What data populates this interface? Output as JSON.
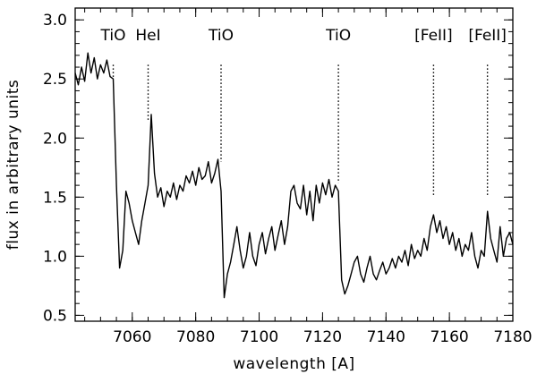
{
  "chart_data": {
    "type": "line",
    "title": "",
    "xlabel": "wavelength [A]",
    "ylabel": "flux in arbitrary units",
    "xlim": [
      7042,
      7180
    ],
    "ylim": [
      0.45,
      3.1
    ],
    "xticks": [
      7060,
      7080,
      7100,
      7120,
      7140,
      7160,
      7180
    ],
    "xtick_labels": [
      "7060",
      "7080",
      "7100",
      "7120",
      "7140",
      "7160",
      "7180"
    ],
    "xminor_step": 5,
    "yticks": [
      0.5,
      1.0,
      1.5,
      2.0,
      2.5,
      3.0
    ],
    "ytick_labels": [
      "0.5",
      "1.0",
      "1.5",
      "2.0",
      "2.5",
      "3.0"
    ],
    "yminor_step": 0.1,
    "grid": false,
    "line_color": "#000000",
    "annotations": [
      {
        "label": "TiO",
        "x": 7054,
        "y_top": 2.62,
        "y_bottom": 2.5
      },
      {
        "label": "HeI",
        "x": 7065,
        "y_top": 2.62,
        "y_bottom": 2.15
      },
      {
        "label": "TiO",
        "x": 7088,
        "y_top": 2.62,
        "y_bottom": 1.8
      },
      {
        "label": "TiO",
        "x": 7125,
        "y_top": 2.62,
        "y_bottom": 1.62
      },
      {
        "label": "[FeII]",
        "x": 7155,
        "y_top": 2.62,
        "y_bottom": 1.5
      },
      {
        "label": "[FeII]",
        "x": 7172,
        "y_top": 2.62,
        "y_bottom": 1.5
      }
    ],
    "series": [
      {
        "x": [
          7042,
          7043,
          7044,
          7045,
          7046,
          7047,
          7048,
          7049,
          7050,
          7051,
          7052,
          7053,
          7054,
          7055,
          7056,
          7057,
          7058,
          7059,
          7060,
          7061,
          7062,
          7063,
          7064,
          7065,
          7066,
          7067,
          7068,
          7069,
          7070,
          7071,
          7072,
          7073,
          7074,
          7075,
          7076,
          7077,
          7078,
          7079,
          7080,
          7081,
          7082,
          7083,
          7084,
          7085,
          7086,
          7087,
          7088,
          7089,
          7090,
          7091,
          7092,
          7093,
          7094,
          7095,
          7096,
          7097,
          7098,
          7099,
          7100,
          7101,
          7102,
          7103,
          7104,
          7105,
          7106,
          7107,
          7108,
          7109,
          7110,
          7111,
          7112,
          7113,
          7114,
          7115,
          7116,
          7117,
          7118,
          7119,
          7120,
          7121,
          7122,
          7123,
          7124,
          7125,
          7126,
          7127,
          7128,
          7129,
          7130,
          7131,
          7132,
          7133,
          7134,
          7135,
          7136,
          7137,
          7138,
          7139,
          7140,
          7141,
          7142,
          7143,
          7144,
          7145,
          7146,
          7147,
          7148,
          7149,
          7150,
          7151,
          7152,
          7153,
          7154,
          7155,
          7156,
          7157,
          7158,
          7159,
          7160,
          7161,
          7162,
          7163,
          7164,
          7165,
          7166,
          7167,
          7168,
          7169,
          7170,
          7171,
          7172,
          7173,
          7174,
          7175,
          7176,
          7177,
          7178,
          7179,
          7180
        ],
        "y": [
          2.55,
          2.45,
          2.6,
          2.48,
          2.72,
          2.55,
          2.68,
          2.5,
          2.62,
          2.55,
          2.66,
          2.52,
          2.5,
          1.6,
          0.9,
          1.05,
          1.55,
          1.45,
          1.3,
          1.2,
          1.1,
          1.3,
          1.45,
          1.6,
          2.2,
          1.7,
          1.5,
          1.58,
          1.42,
          1.55,
          1.5,
          1.62,
          1.48,
          1.6,
          1.55,
          1.68,
          1.62,
          1.72,
          1.6,
          1.75,
          1.65,
          1.68,
          1.8,
          1.62,
          1.7,
          1.82,
          1.55,
          0.65,
          0.85,
          0.95,
          1.1,
          1.25,
          1.05,
          0.9,
          1.0,
          1.2,
          1.0,
          0.92,
          1.1,
          1.2,
          1.02,
          1.15,
          1.25,
          1.05,
          1.18,
          1.3,
          1.1,
          1.25,
          1.55,
          1.6,
          1.45,
          1.4,
          1.6,
          1.35,
          1.55,
          1.3,
          1.6,
          1.45,
          1.62,
          1.52,
          1.65,
          1.5,
          1.6,
          1.55,
          0.8,
          0.68,
          0.75,
          0.85,
          0.95,
          1.0,
          0.85,
          0.78,
          0.9,
          1.0,
          0.85,
          0.8,
          0.88,
          0.95,
          0.85,
          0.9,
          0.98,
          0.9,
          1.0,
          0.95,
          1.05,
          0.92,
          1.1,
          0.98,
          1.05,
          1.0,
          1.15,
          1.05,
          1.25,
          1.35,
          1.2,
          1.3,
          1.15,
          1.25,
          1.1,
          1.2,
          1.05,
          1.15,
          1.0,
          1.1,
          1.05,
          1.2,
          1.0,
          0.9,
          1.05,
          1.0,
          1.38,
          1.15,
          1.05,
          0.95,
          1.25,
          1.0,
          1.15,
          1.2,
          1.1
        ]
      }
    ]
  }
}
